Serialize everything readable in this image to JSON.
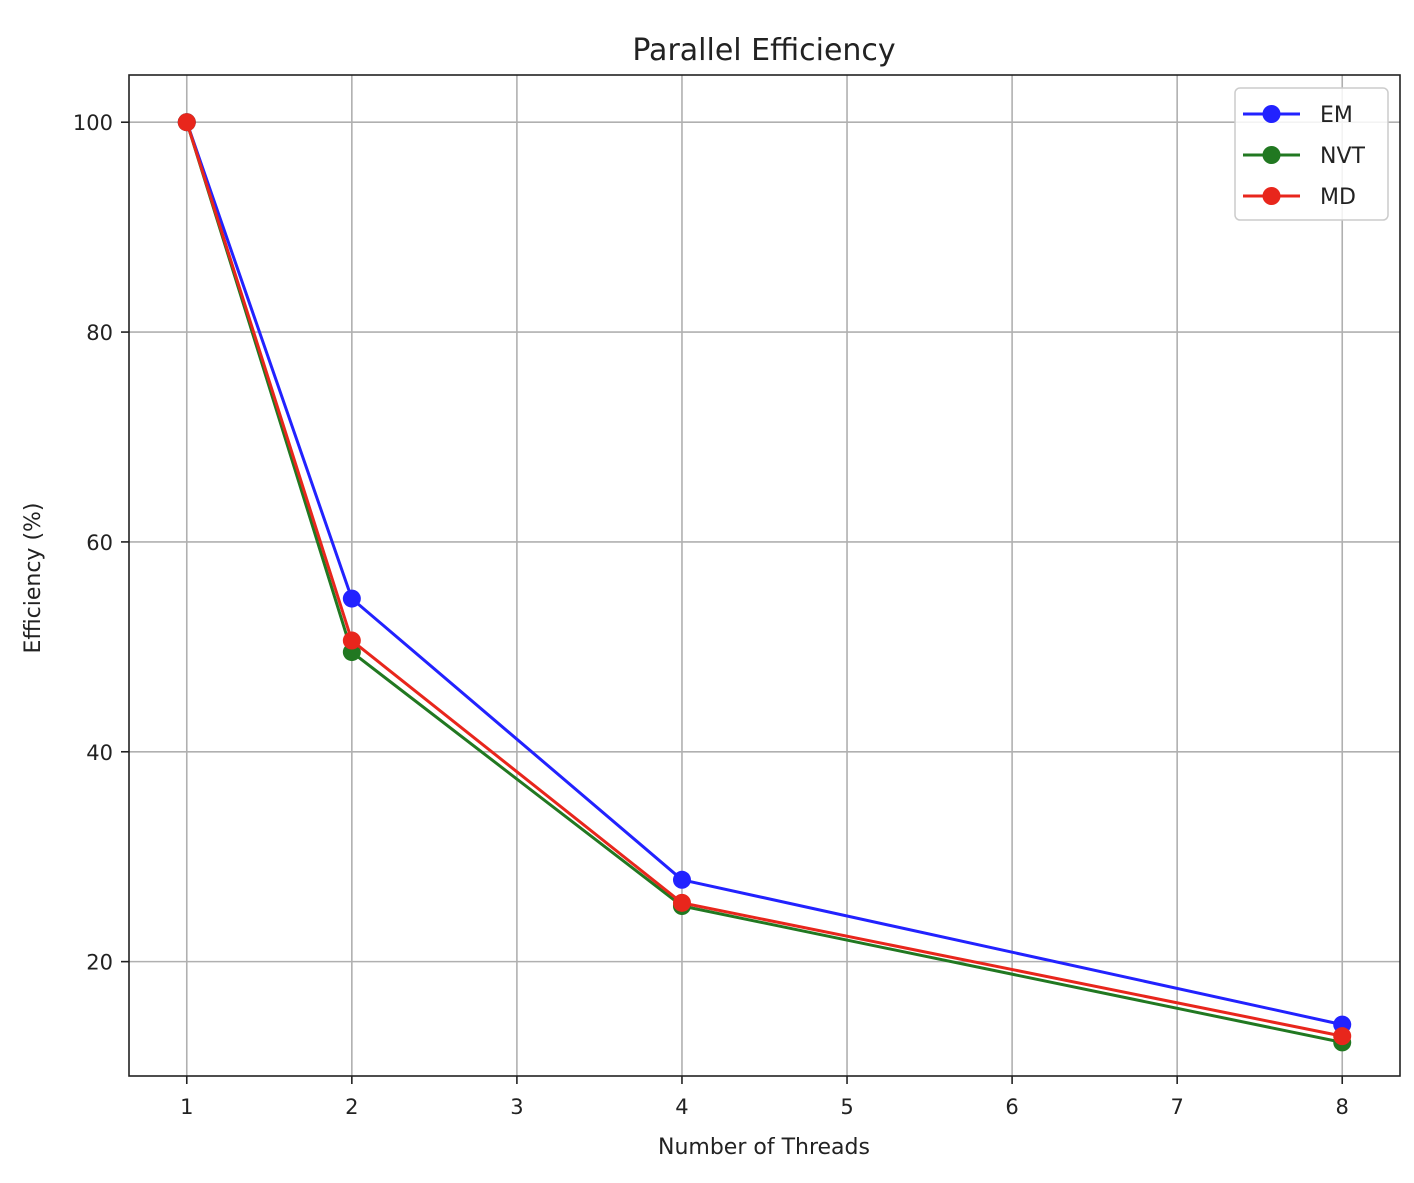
{
  "chart_data": {
    "type": "line",
    "title": "Parallel Efficiency",
    "xlabel": "Number of Threads",
    "ylabel": "Efficiency (%)",
    "x": [
      1,
      2,
      4,
      8
    ],
    "xlim": [
      0.65,
      8.35
    ],
    "ylim": [
      9.1,
      104.5
    ],
    "xticks": [
      1,
      2,
      3,
      4,
      5,
      6,
      7,
      8
    ],
    "yticks": [
      20,
      40,
      60,
      80,
      100
    ],
    "grid": true,
    "legend_position": "top-right",
    "series": [
      {
        "name": "EM",
        "color": "#2222ff",
        "values": [
          100,
          54.6,
          27.8,
          14.0
        ]
      },
      {
        "name": "NVT",
        "color": "#217821",
        "values": [
          100,
          49.5,
          25.3,
          12.3
        ]
      },
      {
        "name": "MD",
        "color": "#e8261c",
        "values": [
          100,
          50.6,
          25.6,
          12.9
        ]
      }
    ]
  }
}
